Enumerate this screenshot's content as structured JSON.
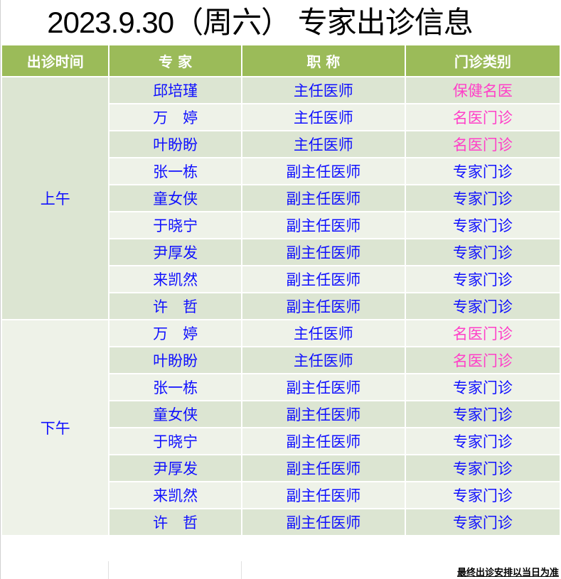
{
  "title": "2023.9.30（周六） 专家出诊信息",
  "headers": [
    "出诊时间",
    "专 家",
    "职 称",
    "门诊类别"
  ],
  "colors": {
    "header_bg": "#9bbb59",
    "text_blue": "#1010ff",
    "text_pink": "#ff3fc8"
  },
  "periods": [
    {
      "label": "上午",
      "rows": [
        {
          "name": "邱培瑾",
          "title": "主任医师",
          "type": "保健名医",
          "highlight": true
        },
        {
          "name": "万　婷",
          "title": "主任医师",
          "type": "名医门诊",
          "highlight": true
        },
        {
          "name": "叶盼盼",
          "title": "主任医师",
          "type": "名医门诊",
          "highlight": true
        },
        {
          "name": "张一栋",
          "title": "副主任医师",
          "type": "专家门诊",
          "highlight": false
        },
        {
          "name": "童女侠",
          "title": "副主任医师",
          "type": "专家门诊",
          "highlight": false
        },
        {
          "name": "于晓宁",
          "title": "副主任医师",
          "type": "专家门诊",
          "highlight": false
        },
        {
          "name": "尹厚发",
          "title": "副主任医师",
          "type": "专家门诊",
          "highlight": false
        },
        {
          "name": "来凯然",
          "title": "副主任医师",
          "type": "专家门诊",
          "highlight": false
        },
        {
          "name": "许　哲",
          "title": "副主任医师",
          "type": "专家门诊",
          "highlight": false
        }
      ]
    },
    {
      "label": "下午",
      "rows": [
        {
          "name": "万　婷",
          "title": "主任医师",
          "type": "名医门诊",
          "highlight": true
        },
        {
          "name": "叶盼盼",
          "title": "主任医师",
          "type": "名医门诊",
          "highlight": true
        },
        {
          "name": "张一栋",
          "title": "副主任医师",
          "type": "专家门诊",
          "highlight": false
        },
        {
          "name": "童女侠",
          "title": "副主任医师",
          "type": "专家门诊",
          "highlight": false
        },
        {
          "name": "于晓宁",
          "title": "副主任医师",
          "type": "专家门诊",
          "highlight": false
        },
        {
          "name": "尹厚发",
          "title": "副主任医师",
          "type": "专家门诊",
          "highlight": false
        },
        {
          "name": "来凯然",
          "title": "副主任医师",
          "type": "专家门诊",
          "highlight": false
        },
        {
          "name": "许　哲",
          "title": "副主任医师",
          "type": "专家门诊",
          "highlight": false
        }
      ]
    }
  ],
  "footer_note": "最终出诊安排以当日为准"
}
